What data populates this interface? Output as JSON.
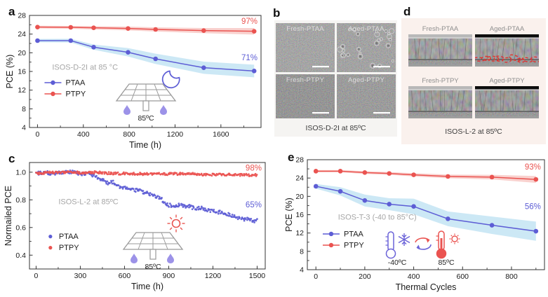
{
  "colors": {
    "ptaa_blue": "#5d5dd5",
    "ptpy_red": "#ea5350",
    "ptaa_band": "#bfe2f2",
    "ptpy_band": "#f7c5c2",
    "muted_label": "#a6a6a6",
    "axis": "#333333",
    "panel_b_bg": "#f5f4f2",
    "panel_d_bg": "#faf1ed"
  },
  "panels": {
    "a": {
      "letter": "a",
      "heat_label": "85ºC"
    },
    "b": {
      "letter": "b",
      "caption": "ISOS-D-2I at 85ºC",
      "tiles": [
        {
          "label": "Fresh-PTAA",
          "kind": "surface",
          "base": "#8f8f8f",
          "rings": false
        },
        {
          "label": "Aged-PTAA",
          "kind": "surface",
          "base": "#8b8b8b",
          "rings": true
        },
        {
          "label": "Fresh-PTPY",
          "kind": "surface",
          "base": "#707070",
          "rings": false
        },
        {
          "label": "Aged-PTPY",
          "kind": "surface",
          "base": "#7d7d7d",
          "rings": false
        }
      ]
    },
    "c": {
      "letter": "c",
      "heat_label": "85ºC"
    },
    "d": {
      "letter": "d",
      "caption": "ISOS-L-2 at 85ºC",
      "tiles": [
        {
          "label": "Fresh-PTAA",
          "kind": "cross",
          "base": "#8a8a8a",
          "top": "#b8b8b8",
          "highlight": false
        },
        {
          "label": "Aged-PTAA",
          "kind": "cross",
          "base": "#8a8a8a",
          "top": "#0d0d0d",
          "highlight": true
        },
        {
          "label": "Fresh-PTPY",
          "kind": "cross",
          "base": "#858585",
          "top": "#b8b8b8",
          "highlight": false
        },
        {
          "label": "Aged-PTPY",
          "kind": "cross",
          "base": "#828282",
          "top": "#0d0d0d",
          "highlight": false
        }
      ]
    },
    "e": {
      "letter": "e",
      "cold_label": "-40ºC",
      "heat_label": "85ºC"
    }
  },
  "chart_data": [
    {
      "id": "a",
      "type": "line",
      "xlabel": "Time (h)",
      "ylabel": "PCE (%)",
      "xlim": [
        -70,
        1950
      ],
      "ylim": [
        4,
        28
      ],
      "xticks": [
        0,
        400,
        800,
        1200,
        1600
      ],
      "yticks": [
        4,
        8,
        12,
        16,
        20,
        24,
        28
      ],
      "x": [
        0,
        290,
        490,
        790,
        1030,
        1450,
        1890
      ],
      "series": [
        {
          "name": "PTAA",
          "color": "#5d5dd5",
          "band_color": "#bfe2f2",
          "values": [
            22.6,
            22.6,
            21.2,
            20.1,
            18.7,
            16.8,
            16.1
          ],
          "band": [
            0.35,
            0.4,
            0.55,
            0.9,
            1.1,
            1.3,
            1.35
          ]
        },
        {
          "name": "PTPY",
          "color": "#ea5350",
          "band_color": "#f7c5c2",
          "values": [
            25.5,
            25.45,
            25.35,
            25.2,
            25.0,
            24.75,
            24.6
          ],
          "band": [
            0.3,
            0.3,
            0.35,
            0.4,
            0.45,
            0.55,
            0.7
          ]
        }
      ],
      "annotations": [
        {
          "text": "97%",
          "color": "#ea5350",
          "fx": 0.985,
          "fy": 0.075,
          "anchor": "end"
        },
        {
          "text": "71%",
          "color": "#5d5dd5",
          "fx": 0.985,
          "fy": 0.4,
          "anchor": "end"
        },
        {
          "text": "ISOS-D-2I at 85 °C",
          "color": "#a6a6a6",
          "fx": 0.24,
          "fy": 0.485,
          "anchor": "middle",
          "size": 11
        }
      ],
      "legend": {
        "fx": 0.065,
        "fy": 0.6,
        "style": "line",
        "entries": [
          "PTAA",
          "PTPY"
        ]
      }
    },
    {
      "id": "c",
      "type": "scatter",
      "xlabel": "Time (h)",
      "ylabel": "Normailed PCE",
      "xlim": [
        -45,
        1555
      ],
      "ylim": [
        0.3,
        1.07
      ],
      "xticks": [
        0,
        300,
        600,
        900,
        1200,
        1500
      ],
      "yticks": [
        0.4,
        0.6,
        0.8,
        1.0
      ],
      "ytick_labels": [
        "0.4",
        "0.6",
        "0.8",
        "1.0"
      ],
      "series": [
        {
          "name": "PTAA",
          "color": "#5d5dd5",
          "noise": 0.013,
          "points": 300,
          "trend": [
            [
              0,
              0.99
            ],
            [
              60,
              1.0
            ],
            [
              120,
              0.99
            ],
            [
              180,
              1.0
            ],
            [
              240,
              1.0
            ],
            [
              300,
              0.99
            ],
            [
              360,
              0.985
            ],
            [
              400,
              0.975
            ],
            [
              430,
              0.955
            ],
            [
              460,
              0.935
            ],
            [
              490,
              0.92
            ],
            [
              520,
              0.93
            ],
            [
              550,
              0.905
            ],
            [
              590,
              0.89
            ],
            [
              630,
              0.885
            ],
            [
              670,
              0.872
            ],
            [
              710,
              0.862
            ],
            [
              750,
              0.848
            ],
            [
              790,
              0.838
            ],
            [
              830,
              0.82
            ],
            [
              855,
              0.8
            ],
            [
              875,
              0.775
            ],
            [
              900,
              0.762
            ],
            [
              930,
              0.757
            ],
            [
              960,
              0.765
            ],
            [
              1000,
              0.758
            ],
            [
              1040,
              0.752
            ],
            [
              1080,
              0.735
            ],
            [
              1120,
              0.742
            ],
            [
              1160,
              0.73
            ],
            [
              1200,
              0.72
            ],
            [
              1240,
              0.712
            ],
            [
              1280,
              0.7
            ],
            [
              1320,
              0.693
            ],
            [
              1360,
              0.672
            ],
            [
              1400,
              0.663
            ],
            [
              1440,
              0.658
            ],
            [
              1470,
              0.648
            ],
            [
              1500,
              0.652
            ]
          ]
        },
        {
          "name": "PTPY",
          "color": "#ea5350",
          "noise": 0.009,
          "points": 300,
          "trend": [
            [
              0,
              0.992
            ],
            [
              100,
              0.997
            ],
            [
              200,
              1.0
            ],
            [
              300,
              0.996
            ],
            [
              400,
              0.999
            ],
            [
              500,
              0.993
            ],
            [
              600,
              0.99
            ],
            [
              700,
              0.988
            ],
            [
              800,
              0.987
            ],
            [
              900,
              0.986
            ],
            [
              1000,
              0.99
            ],
            [
              1100,
              0.986
            ],
            [
              1200,
              0.982
            ],
            [
              1300,
              0.985
            ],
            [
              1400,
              0.98
            ],
            [
              1500,
              0.98
            ]
          ]
        }
      ],
      "annotations": [
        {
          "text": "98%",
          "color": "#ea5350",
          "fx": 0.985,
          "fy": 0.075,
          "anchor": "end"
        },
        {
          "text": "65%",
          "color": "#5d5dd5",
          "fx": 0.985,
          "fy": 0.42,
          "anchor": "end"
        },
        {
          "text": "ISOS-L-2 at 85ºC",
          "color": "#a6a6a6",
          "fx": 0.25,
          "fy": 0.39,
          "anchor": "middle",
          "size": 11
        }
      ],
      "legend": {
        "fx": 0.065,
        "fy": 0.695,
        "style": "dot",
        "entries": [
          "PTAA",
          "PTPY"
        ]
      }
    },
    {
      "id": "e",
      "type": "line",
      "xlabel": "Thermal Cycles",
      "ylabel": "PCE (%)",
      "xlim": [
        -35,
        935
      ],
      "ylim": [
        4,
        28
      ],
      "xticks": [
        0,
        200,
        400,
        600,
        800
      ],
      "yticks": [
        4,
        8,
        12,
        16,
        20,
        24,
        28
      ],
      "x": [
        0,
        100,
        200,
        300,
        400,
        540,
        720,
        900
      ],
      "series": [
        {
          "name": "PTAA",
          "color": "#5d5dd5",
          "band_color": "#bfe2f2",
          "values": [
            22.2,
            21.1,
            19.1,
            18.3,
            17.8,
            15.1,
            13.7,
            12.4
          ],
          "band": [
            0.5,
            0.9,
            1.3,
            1.3,
            1.7,
            1.6,
            1.9,
            2.1
          ]
        },
        {
          "name": "PTPY",
          "color": "#ea5350",
          "band_color": "#f7c5c2",
          "values": [
            25.5,
            25.5,
            25.2,
            25.0,
            24.7,
            24.35,
            24.2,
            23.7
          ],
          "band": [
            0.25,
            0.25,
            0.3,
            0.3,
            0.35,
            0.4,
            0.5,
            0.75
          ]
        }
      ],
      "annotations": [
        {
          "text": "93%",
          "color": "#ea5350",
          "fx": 0.985,
          "fy": 0.09,
          "anchor": "end"
        },
        {
          "text": "56%",
          "color": "#5d5dd5",
          "fx": 0.985,
          "fy": 0.45,
          "anchor": "end"
        },
        {
          "text": "ISOS-T-3 (-40 to 85°C)",
          "color": "#a6a6a6",
          "fx": 0.295,
          "fy": 0.545,
          "anchor": "middle",
          "size": 11
        }
      ],
      "legend": {
        "fx": 0.065,
        "fy": 0.675,
        "style": "line",
        "entries": [
          "PTAA",
          "PTPY"
        ]
      }
    }
  ]
}
